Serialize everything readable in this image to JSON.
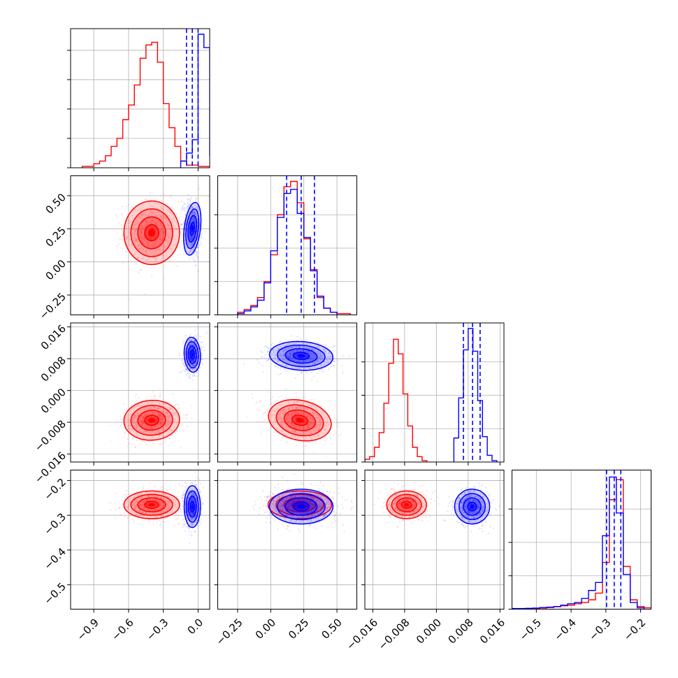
{
  "chart_data": {
    "type": "corner",
    "grid": true,
    "series": [
      {
        "color": "#ff0000",
        "role": "samples-1"
      },
      {
        "color": "#0000ff",
        "role": "samples-2"
      }
    ],
    "params": [
      {
        "range": [
          -1.1,
          0.1
        ],
        "ticks": [
          -0.9,
          -0.6,
          -0.3,
          0.0
        ],
        "tick_labels": [
          "−0.9",
          "−0.6",
          "−0.3",
          "0.0"
        ]
      },
      {
        "range": [
          -0.4,
          0.65
        ],
        "ticks": [
          -0.25,
          0.0,
          0.25,
          0.5
        ],
        "tick_labels": [
          "−0.25",
          "0.00",
          "0.25",
          "0.50"
        ]
      },
      {
        "range": [
          -0.018,
          0.017
        ],
        "ticks": [
          -0.016,
          -0.008,
          0.0,
          0.008,
          0.016
        ],
        "tick_labels": [
          "−0.016",
          "−0.008",
          "0.000",
          "0.008",
          "0.016"
        ]
      },
      {
        "range": [
          -0.57,
          -0.17
        ],
        "ticks": [
          -0.5,
          -0.4,
          -0.3,
          -0.2
        ],
        "tick_labels": [
          "−0.5",
          "−0.4",
          "−0.3",
          "−0.2"
        ]
      }
    ],
    "diag_yticks": [
      [
        0.0,
        0.22,
        0.44,
        0.66,
        0.88
      ],
      [
        0.0,
        0.25,
        0.5,
        0.75
      ],
      [
        0.0,
        0.25,
        0.5,
        0.75
      ],
      [
        0.0,
        0.25,
        0.5,
        0.75
      ]
    ],
    "histograms": [
      {
        "param": 0,
        "red": {
          "x0": -1.0,
          "dx": 0.05,
          "counts": [
            0.01,
            0.01,
            0.03,
            0.05,
            0.09,
            0.16,
            0.22,
            0.36,
            0.47,
            0.62,
            0.82,
            0.92,
            0.94,
            0.79,
            0.48,
            0.3,
            0.16,
            0.05,
            0.02,
            0.02,
            0.01,
            0.01
          ]
        },
        "blue": {
          "x0": -0.15,
          "dx": 0.05,
          "counts": [
            0.05,
            0.11,
            0.21,
            1.0,
            0.9,
            0.09
          ]
        },
        "quantiles": [
          -0.1,
          -0.05,
          0.0
        ]
      },
      {
        "param": 1,
        "red": {
          "x0": -0.25,
          "dx": 0.05,
          "counts": [
            0.02,
            0.04,
            0.07,
            0.13,
            0.25,
            0.45,
            0.75,
            0.96,
            1.0,
            0.84,
            0.57,
            0.34,
            0.13,
            0.05,
            0.02,
            0.01,
            0.01
          ]
        },
        "blue": {
          "x0": -0.25,
          "dx": 0.05,
          "counts": [
            0.01,
            0.03,
            0.06,
            0.11,
            0.24,
            0.48,
            0.73,
            0.91,
            0.94,
            0.76,
            0.58,
            0.33,
            0.14,
            0.05,
            0.02
          ]
        },
        "quantiles": [
          0.12,
          0.23,
          0.33
        ]
      },
      {
        "param": 2,
        "red": {
          "x0": -0.018,
          "dx": 0.0012,
          "counts": [
            0.02,
            0.04,
            0.11,
            0.22,
            0.44,
            0.74,
            0.92,
            0.81,
            0.51,
            0.27,
            0.11,
            0.04,
            0.01
          ]
        },
        "blue": {
          "x0": 0.0044,
          "dx": 0.0012,
          "counts": [
            0.18,
            0.48,
            0.84,
            1.0,
            0.83,
            0.46,
            0.19,
            0.05,
            0.01
          ]
        },
        "quantiles": [
          0.0068,
          0.0091,
          0.011
        ]
      },
      {
        "param": 3,
        "red": {
          "x0": -0.57,
          "dx": 0.02,
          "counts": [
            0.005,
            0.005,
            0.005,
            0.006,
            0.008,
            0.012,
            0.018,
            0.025,
            0.03,
            0.04,
            0.05,
            0.07,
            0.12,
            0.35,
            0.82,
            0.97,
            0.32,
            0.07,
            0.02,
            0.01
          ]
        },
        "blue": {
          "x0": -0.57,
          "dx": 0.02,
          "counts": [
            0.004,
            0.004,
            0.006,
            0.008,
            0.012,
            0.015,
            0.02,
            0.03,
            0.04,
            0.05,
            0.08,
            0.14,
            0.2,
            0.55,
            0.99,
            0.72,
            0.26,
            0.05,
            0.01
          ]
        },
        "quantiles": [
          -0.298,
          -0.276,
          -0.257
        ]
      }
    ],
    "scatter_2d": [
      {
        "row": 1,
        "col": 0,
        "red": {
          "mean": [
            -0.4,
            0.22
          ],
          "sd": [
            0.12,
            0.12
          ],
          "rho": 0.0
        },
        "blue": {
          "mean": [
            -0.05,
            0.25
          ],
          "sd": [
            0.035,
            0.1
          ],
          "rho": -0.2
        }
      },
      {
        "row": 2,
        "col": 0,
        "red": {
          "mean": [
            -0.4,
            -0.0075
          ],
          "sd": [
            0.12,
            0.0025
          ],
          "rho": 0.1
        },
        "blue": {
          "mean": [
            -0.05,
            0.009
          ],
          "sd": [
            0.035,
            0.0022
          ],
          "rho": 0.1
        }
      },
      {
        "row": 2,
        "col": 1,
        "red": {
          "mean": [
            0.22,
            -0.0075
          ],
          "sd": [
            0.12,
            0.0025
          ],
          "rho": -0.35
        },
        "blue": {
          "mean": [
            0.23,
            0.0087
          ],
          "sd": [
            0.12,
            0.0018
          ],
          "rho": -0.1
        }
      },
      {
        "row": 3,
        "col": 0,
        "red": {
          "mean": [
            -0.4,
            -0.27
          ],
          "sd": [
            0.12,
            0.02
          ],
          "rho": 0.0
        },
        "blue": {
          "mean": [
            -0.05,
            -0.275
          ],
          "sd": [
            0.035,
            0.03
          ],
          "rho": 0.0
        }
      },
      {
        "row": 3,
        "col": 1,
        "red": {
          "mean": [
            0.22,
            -0.27
          ],
          "sd": [
            0.12,
            0.02
          ],
          "rho": 0.0
        },
        "blue": {
          "mean": [
            0.23,
            -0.275
          ],
          "sd": [
            0.12,
            0.025
          ],
          "rho": 0.0
        }
      },
      {
        "row": 3,
        "col": 2,
        "red": {
          "mean": [
            -0.0075,
            -0.27
          ],
          "sd": [
            0.0025,
            0.02
          ],
          "rho": 0.0
        },
        "blue": {
          "mean": [
            0.009,
            -0.275
          ],
          "sd": [
            0.0022,
            0.025
          ],
          "rho": 0.0
        }
      }
    ]
  }
}
